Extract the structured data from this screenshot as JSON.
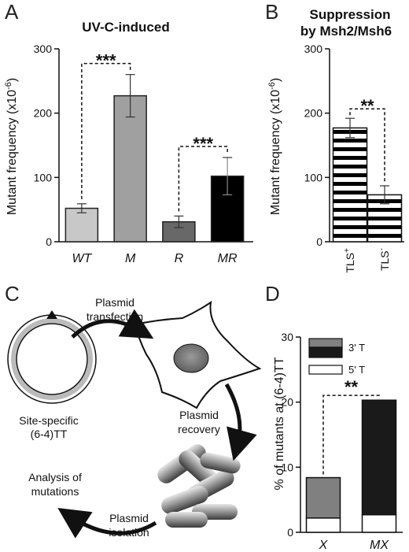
{
  "panels": {
    "a": {
      "letter": "A",
      "title": "UV-C-induced"
    },
    "b": {
      "letter": "B",
      "title_line1": "Suppression",
      "title_line2": "by Msh2/Msh6"
    },
    "c": {
      "letter": "C"
    },
    "d": {
      "letter": "D"
    }
  },
  "colors": {
    "wt": "#c8c8c8",
    "m": "#a0a0a0",
    "r": "#686868",
    "mr": "#000000",
    "three_prime": "#1a1a1a",
    "three_prime_gray": "#808080",
    "five_prime": "#ffffff"
  },
  "chart_data": [
    {
      "type": "bar",
      "panel": "A",
      "title": "UV-C-induced",
      "categories": [
        "WT",
        "M",
        "R",
        "MR"
      ],
      "values": [
        52,
        227,
        31,
        102
      ],
      "errors": [
        7,
        33,
        9,
        29
      ],
      "ylabel": "Mutant frequency (x10-6)",
      "ylabel_main": "Mutant frequency (x10",
      "ylabel_exp": "-6",
      "ylabel_close": ")",
      "ylim": [
        0,
        300
      ],
      "yticks": [
        "0",
        "100",
        "200",
        "300"
      ],
      "significance": [
        {
          "between": [
            "WT",
            "M"
          ],
          "label": "***"
        },
        {
          "between": [
            "R",
            "MR"
          ],
          "label": "***"
        }
      ]
    },
    {
      "type": "bar",
      "panel": "B",
      "title": "Suppression by Msh2/Msh6",
      "categories": [
        "TLS+",
        "TLS-"
      ],
      "category_base": [
        "TLS",
        "TLS"
      ],
      "category_sup": [
        "+",
        "-"
      ],
      "values": [
        177,
        73
      ],
      "errors": [
        15,
        14
      ],
      "ylabel_main": "Mutant frequency (x10",
      "ylabel_exp": "-6",
      "ylabel_close": ")",
      "ylim": [
        0,
        300
      ],
      "yticks": [
        "0",
        "100",
        "200",
        "300"
      ],
      "significance": [
        {
          "between": [
            "TLS+",
            "TLS-"
          ],
          "label": "**"
        }
      ]
    },
    {
      "type": "bar",
      "stacked": true,
      "panel": "D",
      "categories": [
        "X",
        "MX"
      ],
      "series": [
        {
          "name": "5' T",
          "values": [
            2.2,
            2.7
          ]
        },
        {
          "name": "3' T",
          "values": [
            6.2,
            17.6
          ]
        }
      ],
      "ylabel": "% of mutants at (6-4)TT",
      "ylim": [
        0,
        30
      ],
      "yticks": [
        "0",
        "10",
        "20",
        "30"
      ],
      "significance": [
        {
          "between": [
            "X",
            "MX"
          ],
          "label": "**"
        }
      ]
    }
  ],
  "diagram": {
    "step1": [
      "Plasmid",
      "transfection"
    ],
    "step2": [
      "Plasmid",
      "recovery"
    ],
    "step3": [
      "Plasmid",
      "isolation"
    ],
    "step4": [
      "Analysis of",
      "mutations"
    ],
    "plasmid_label": [
      "Site-specific",
      "(6-4)TT"
    ]
  }
}
